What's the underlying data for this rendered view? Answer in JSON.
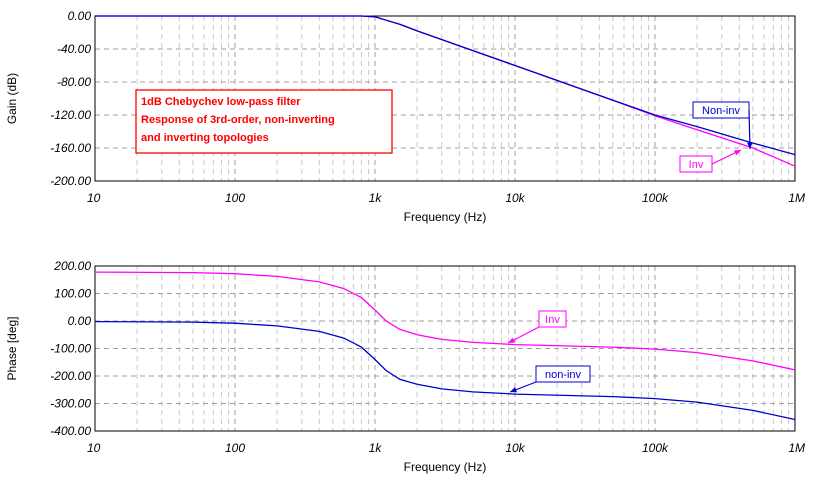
{
  "chart_data": [
    {
      "type": "line",
      "id": "gain",
      "xscale": "log",
      "xlim": [
        10,
        1000000
      ],
      "ylim": [
        -200,
        0
      ],
      "xticks": [
        10,
        100,
        1000,
        10000,
        100000,
        1000000
      ],
      "xtick_labels": [
        "10",
        "100",
        "1k",
        "10k",
        "100k",
        "1M"
      ],
      "yticks": [
        0,
        -40,
        -80,
        -120,
        -160,
        -200
      ],
      "ytick_labels": [
        "0.00",
        "-40.00",
        "-80.00",
        "-120.00",
        "-160.00",
        "-200.00"
      ],
      "xlabel": "Frequency (Hz)",
      "ylabel": "Gain (dB)",
      "grid": true,
      "series": [
        {
          "name": "Inv",
          "color": "#ff00ff",
          "x": [
            10,
            100,
            500,
            800,
            1000,
            1500,
            2000,
            5000,
            10000,
            50000,
            100000,
            200000,
            500000,
            1000000
          ],
          "y": [
            0,
            0,
            0,
            0,
            -1,
            -10,
            -18,
            -42,
            -60,
            -102,
            -121,
            -138,
            -160,
            -182
          ]
        },
        {
          "name": "Non-inv",
          "color": "#0000cc",
          "x": [
            10,
            100,
            500,
            800,
            1000,
            1500,
            2000,
            5000,
            10000,
            50000,
            100000,
            200000,
            500000,
            1000000
          ],
          "y": [
            0,
            0,
            0,
            0,
            -1,
            -10,
            -18,
            -42,
            -60,
            -102,
            -120,
            -134,
            -154,
            -168
          ]
        }
      ],
      "annotation_lines": [
        "1dB Chebychev low-pass filter",
        "Response of 3rd-order, non-inverting",
        "and inverting topologies"
      ],
      "labels": [
        "Non-inv",
        "Inv"
      ]
    },
    {
      "type": "line",
      "id": "phase",
      "xscale": "log",
      "xlim": [
        10,
        1000000
      ],
      "ylim": [
        -400,
        200
      ],
      "xticks": [
        10,
        100,
        1000,
        10000,
        100000,
        1000000
      ],
      "xtick_labels": [
        "10",
        "100",
        "1k",
        "10k",
        "100k",
        "1M"
      ],
      "yticks": [
        200,
        100,
        0,
        -100,
        -200,
        -300,
        -400
      ],
      "ytick_labels": [
        "200.00",
        "100.00",
        "0.00",
        "-100.00",
        "-200.00",
        "-300.00",
        "-400.00"
      ],
      "xlabel": "Frequency (Hz)",
      "ylabel": "Phase [deg]",
      "grid": true,
      "series": [
        {
          "name": "Inv",
          "color": "#ff00ff",
          "x": [
            10,
            50,
            100,
            200,
            400,
            600,
            800,
            1000,
            1200,
            1500,
            2000,
            3000,
            5000,
            10000,
            50000,
            100000,
            200000,
            500000,
            1000000
          ],
          "y": [
            178,
            176,
            172,
            162,
            142,
            118,
            85,
            40,
            0,
            -30,
            -50,
            -67,
            -78,
            -86,
            -95,
            -102,
            -115,
            -145,
            -178
          ],
          "label": "Inv"
        },
        {
          "name": "non-inv",
          "color": "#0000cc",
          "x": [
            10,
            50,
            100,
            200,
            400,
            600,
            800,
            1000,
            1200,
            1500,
            2000,
            3000,
            5000,
            10000,
            50000,
            100000,
            200000,
            500000,
            1000000
          ],
          "y": [
            -2,
            -4,
            -8,
            -18,
            -38,
            -62,
            -95,
            -140,
            -180,
            -212,
            -230,
            -247,
            -258,
            -266,
            -275,
            -282,
            -295,
            -325,
            -358
          ],
          "label": "non-inv"
        }
      ],
      "labels": [
        "Inv",
        "non-inv"
      ]
    }
  ]
}
